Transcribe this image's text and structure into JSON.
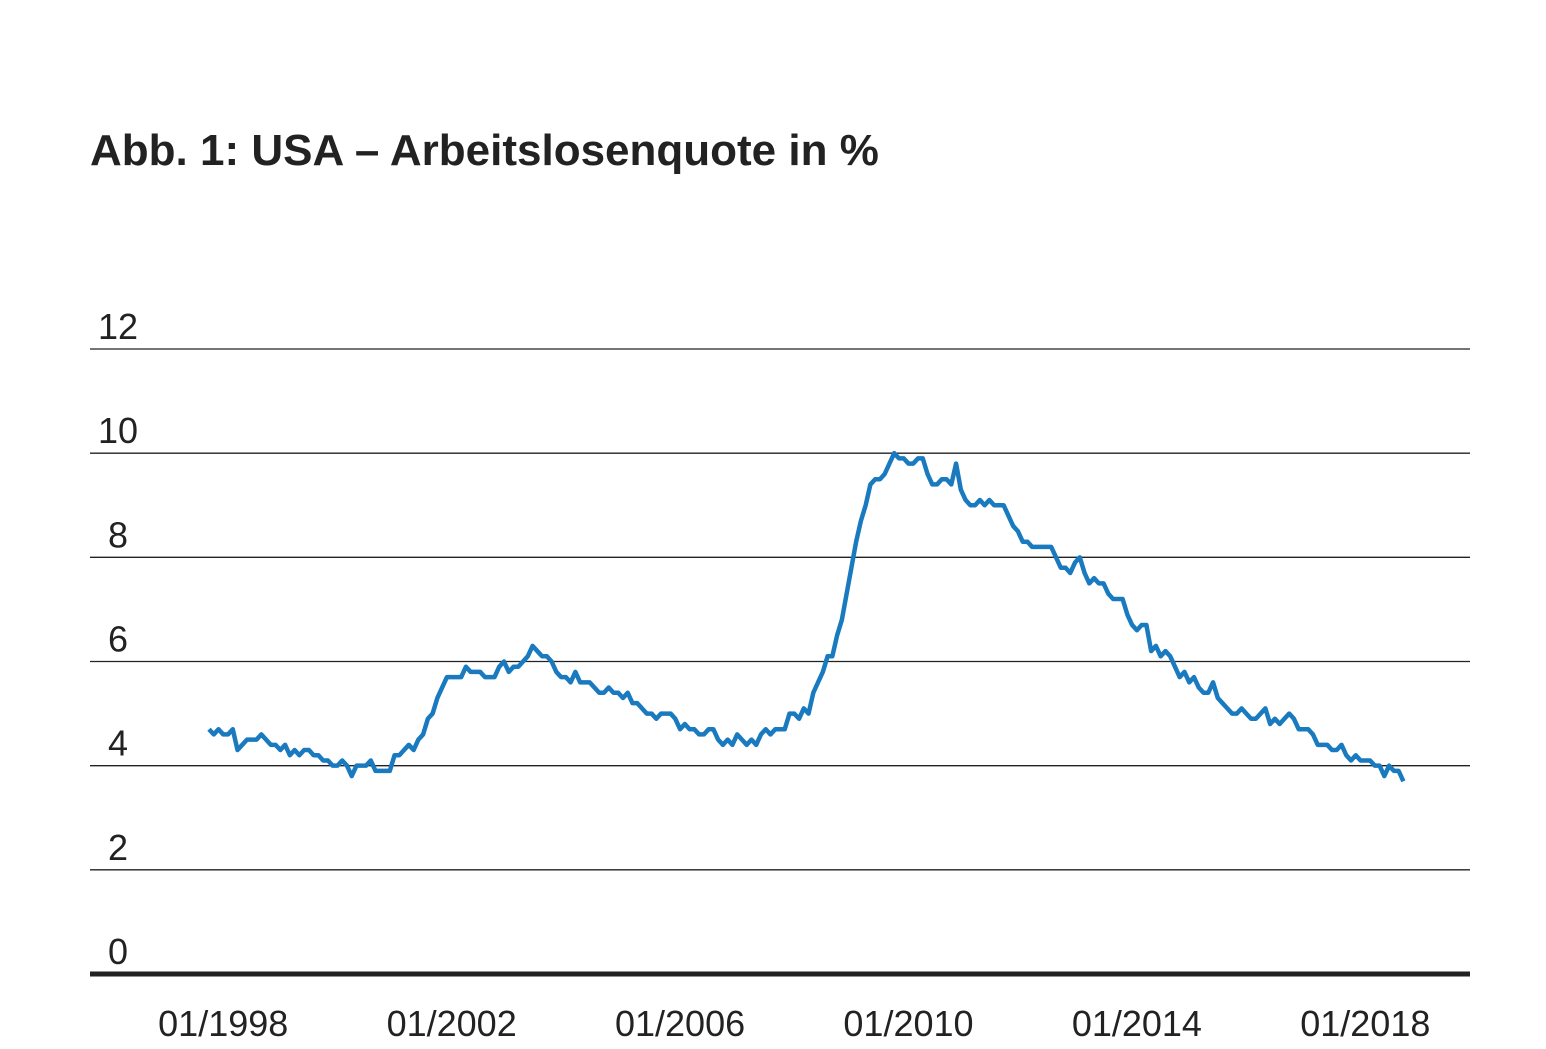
{
  "chart_data": {
    "type": "line",
    "title": "Abb. 1: USA – Arbeitslosenquote in %",
    "x": [
      "10/1997",
      "11/1997",
      "12/1997",
      "01/1998",
      "02/1998",
      "03/1998",
      "04/1998",
      "05/1998",
      "06/1998",
      "07/1998",
      "08/1998",
      "09/1998",
      "10/1998",
      "11/1998",
      "12/1998",
      "01/1999",
      "02/1999",
      "03/1999",
      "04/1999",
      "05/1999",
      "06/1999",
      "07/1999",
      "08/1999",
      "09/1999",
      "10/1999",
      "11/1999",
      "12/1999",
      "01/2000",
      "02/2000",
      "03/2000",
      "04/2000",
      "05/2000",
      "06/2000",
      "07/2000",
      "08/2000",
      "09/2000",
      "10/2000",
      "11/2000",
      "12/2000",
      "01/2001",
      "02/2001",
      "03/2001",
      "04/2001",
      "05/2001",
      "06/2001",
      "07/2001",
      "08/2001",
      "09/2001",
      "10/2001",
      "11/2001",
      "12/2001",
      "01/2002",
      "02/2002",
      "03/2002",
      "04/2002",
      "05/2002",
      "06/2002",
      "07/2002",
      "08/2002",
      "09/2002",
      "10/2002",
      "11/2002",
      "12/2002",
      "01/2003",
      "02/2003",
      "03/2003",
      "04/2003",
      "05/2003",
      "06/2003",
      "07/2003",
      "08/2003",
      "09/2003",
      "10/2003",
      "11/2003",
      "12/2003",
      "01/2004",
      "02/2004",
      "03/2004",
      "04/2004",
      "05/2004",
      "06/2004",
      "07/2004",
      "08/2004",
      "09/2004",
      "10/2004",
      "11/2004",
      "12/2004",
      "01/2005",
      "02/2005",
      "03/2005",
      "04/2005",
      "05/2005",
      "06/2005",
      "07/2005",
      "08/2005",
      "09/2005",
      "10/2005",
      "11/2005",
      "12/2005",
      "01/2006",
      "02/2006",
      "03/2006",
      "04/2006",
      "05/2006",
      "06/2006",
      "07/2006",
      "08/2006",
      "09/2006",
      "10/2006",
      "11/2006",
      "12/2006",
      "01/2007",
      "02/2007",
      "03/2007",
      "04/2007",
      "05/2007",
      "06/2007",
      "07/2007",
      "08/2007",
      "09/2007",
      "10/2007",
      "11/2007",
      "12/2007",
      "01/2008",
      "02/2008",
      "03/2008",
      "04/2008",
      "05/2008",
      "06/2008",
      "07/2008",
      "08/2008",
      "09/2008",
      "10/2008",
      "11/2008",
      "12/2008",
      "01/2009",
      "02/2009",
      "03/2009",
      "04/2009",
      "05/2009",
      "06/2009",
      "07/2009",
      "08/2009",
      "09/2009",
      "10/2009",
      "11/2009",
      "12/2009",
      "01/2010",
      "02/2010",
      "03/2010",
      "04/2010",
      "05/2010",
      "06/2010",
      "07/2010",
      "08/2010",
      "09/2010",
      "10/2010",
      "11/2010",
      "12/2010",
      "01/2011",
      "02/2011",
      "03/2011",
      "04/2011",
      "05/2011",
      "06/2011",
      "07/2011",
      "08/2011",
      "09/2011",
      "10/2011",
      "11/2011",
      "12/2011",
      "01/2012",
      "02/2012",
      "03/2012",
      "04/2012",
      "05/2012",
      "06/2012",
      "07/2012",
      "08/2012",
      "09/2012",
      "10/2012",
      "11/2012",
      "12/2012",
      "01/2013",
      "02/2013",
      "03/2013",
      "04/2013",
      "05/2013",
      "06/2013",
      "07/2013",
      "08/2013",
      "09/2013",
      "10/2013",
      "11/2013",
      "12/2013",
      "01/2014",
      "02/2014",
      "03/2014",
      "04/2014",
      "05/2014",
      "06/2014",
      "07/2014",
      "08/2014",
      "09/2014",
      "10/2014",
      "11/2014",
      "12/2014",
      "01/2015",
      "02/2015",
      "03/2015",
      "04/2015",
      "05/2015",
      "06/2015",
      "07/2015",
      "08/2015",
      "09/2015",
      "10/2015",
      "11/2015",
      "12/2015",
      "01/2016",
      "02/2016",
      "03/2016",
      "04/2016",
      "05/2016",
      "06/2016",
      "07/2016",
      "08/2016",
      "09/2016",
      "10/2016",
      "11/2016",
      "12/2016",
      "01/2017",
      "02/2017",
      "03/2017",
      "04/2017",
      "05/2017",
      "06/2017",
      "07/2017",
      "08/2017",
      "09/2017",
      "10/2017",
      "11/2017",
      "12/2017",
      "01/2018",
      "02/2018",
      "03/2018",
      "04/2018",
      "05/2018",
      "06/2018",
      "07/2018",
      "08/2018",
      "09/2018"
    ],
    "series": [
      {
        "color": "#1a7abf",
        "values": [
          4.7,
          4.6,
          4.7,
          4.6,
          4.6,
          4.7,
          4.3,
          4.4,
          4.5,
          4.5,
          4.5,
          4.6,
          4.5,
          4.4,
          4.4,
          4.3,
          4.4,
          4.2,
          4.3,
          4.2,
          4.3,
          4.3,
          4.2,
          4.2,
          4.1,
          4.1,
          4.0,
          4.0,
          4.1,
          4.0,
          3.8,
          4.0,
          4.0,
          4.0,
          4.1,
          3.9,
          3.9,
          3.9,
          3.9,
          4.2,
          4.2,
          4.3,
          4.4,
          4.3,
          4.5,
          4.6,
          4.9,
          5.0,
          5.3,
          5.5,
          5.7,
          5.7,
          5.7,
          5.7,
          5.9,
          5.8,
          5.8,
          5.8,
          5.7,
          5.7,
          5.7,
          5.9,
          6.0,
          5.8,
          5.9,
          5.9,
          6.0,
          6.1,
          6.3,
          6.2,
          6.1,
          6.1,
          6.0,
          5.8,
          5.7,
          5.7,
          5.6,
          5.8,
          5.6,
          5.6,
          5.6,
          5.5,
          5.4,
          5.4,
          5.5,
          5.4,
          5.4,
          5.3,
          5.4,
          5.2,
          5.2,
          5.1,
          5.0,
          5.0,
          4.9,
          5.0,
          5.0,
          5.0,
          4.9,
          4.7,
          4.8,
          4.7,
          4.7,
          4.6,
          4.6,
          4.7,
          4.7,
          4.5,
          4.4,
          4.5,
          4.4,
          4.6,
          4.5,
          4.4,
          4.5,
          4.4,
          4.6,
          4.7,
          4.6,
          4.7,
          4.7,
          4.7,
          5.0,
          5.0,
          4.9,
          5.1,
          5.0,
          5.4,
          5.6,
          5.8,
          6.1,
          6.1,
          6.5,
          6.8,
          7.3,
          7.8,
          8.3,
          8.7,
          9.0,
          9.4,
          9.5,
          9.5,
          9.6,
          9.8,
          10.0,
          9.9,
          9.9,
          9.8,
          9.8,
          9.9,
          9.9,
          9.6,
          9.4,
          9.4,
          9.5,
          9.5,
          9.4,
          9.8,
          9.3,
          9.1,
          9.0,
          9.0,
          9.1,
          9.0,
          9.1,
          9.0,
          9.0,
          9.0,
          8.8,
          8.6,
          8.5,
          8.3,
          8.3,
          8.2,
          8.2,
          8.2,
          8.2,
          8.2,
          8.0,
          7.8,
          7.8,
          7.7,
          7.9,
          8.0,
          7.7,
          7.5,
          7.6,
          7.5,
          7.5,
          7.3,
          7.2,
          7.2,
          7.2,
          6.9,
          6.7,
          6.6,
          6.7,
          6.7,
          6.2,
          6.3,
          6.1,
          6.2,
          6.1,
          5.9,
          5.7,
          5.8,
          5.6,
          5.7,
          5.5,
          5.4,
          5.4,
          5.6,
          5.3,
          5.2,
          5.1,
          5.0,
          5.0,
          5.1,
          5.0,
          4.9,
          4.9,
          5.0,
          5.1,
          4.8,
          4.9,
          4.8,
          4.9,
          5.0,
          4.9,
          4.7,
          4.7,
          4.7,
          4.6,
          4.4,
          4.4,
          4.4,
          4.3,
          4.3,
          4.4,
          4.2,
          4.1,
          4.2,
          4.1,
          4.1,
          4.1,
          4.0,
          4.0,
          3.8,
          4.0,
          3.9,
          3.9,
          3.7
        ]
      }
    ],
    "xlim": [
      "09/1995",
      "11/2019"
    ],
    "xticks": [
      "01/1998",
      "01/2002",
      "01/2006",
      "01/2010",
      "01/2014",
      "01/2018"
    ],
    "ylim": [
      0,
      12
    ],
    "yticks": [
      0,
      2,
      4,
      6,
      8,
      10,
      12
    ],
    "grid": true
  }
}
